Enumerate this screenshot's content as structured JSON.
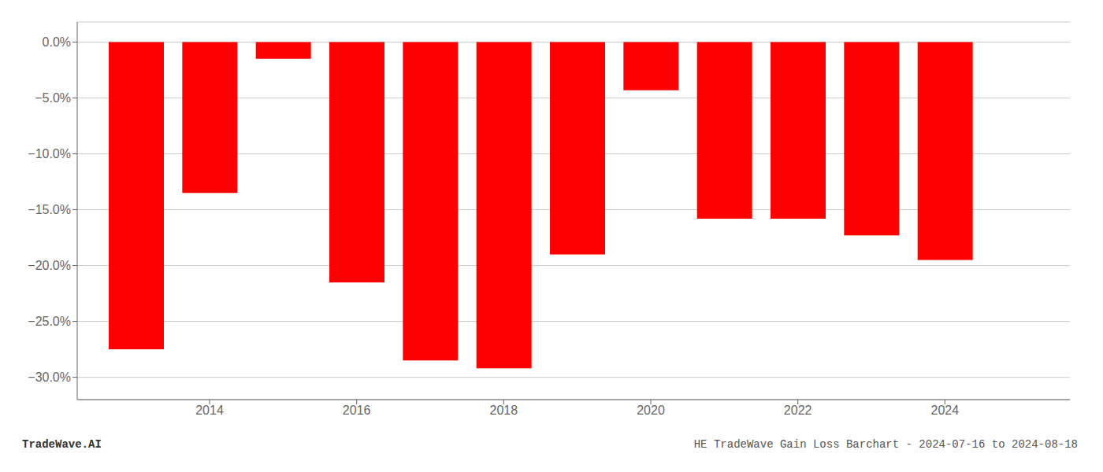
{
  "chart_data": {
    "type": "bar",
    "x": [
      2013,
      2014,
      2015,
      2016,
      2017,
      2018,
      2019,
      2020,
      2021,
      2022,
      2023,
      2024
    ],
    "values": [
      -27.5,
      -13.5,
      -1.5,
      -21.5,
      -28.5,
      -29.2,
      -19.0,
      -4.3,
      -15.8,
      -15.8,
      -17.3,
      -19.5
    ],
    "color": "#ff0000",
    "xlim": [
      2012.2,
      2025.7
    ],
    "xticks": [
      2014,
      2016,
      2018,
      2020,
      2022,
      2024
    ],
    "ylim": [
      -32.0,
      1.8
    ],
    "yticks": [
      {
        "value": 0.0,
        "label": "0.0%"
      },
      {
        "value": -5.0,
        "label": "−5.0%"
      },
      {
        "value": -10.0,
        "label": "−10.0%"
      },
      {
        "value": -15.0,
        "label": "−15.0%"
      },
      {
        "value": -20.0,
        "label": "−20.0%"
      },
      {
        "value": -25.0,
        "label": "−25.0%"
      },
      {
        "value": -30.0,
        "label": "−30.0%"
      }
    ],
    "grid": true,
    "annotations": [
      "TradeWave.AI",
      "HE TradeWave Gain Loss Barchart - 2024-07-16 to 2024-08-18"
    ]
  }
}
